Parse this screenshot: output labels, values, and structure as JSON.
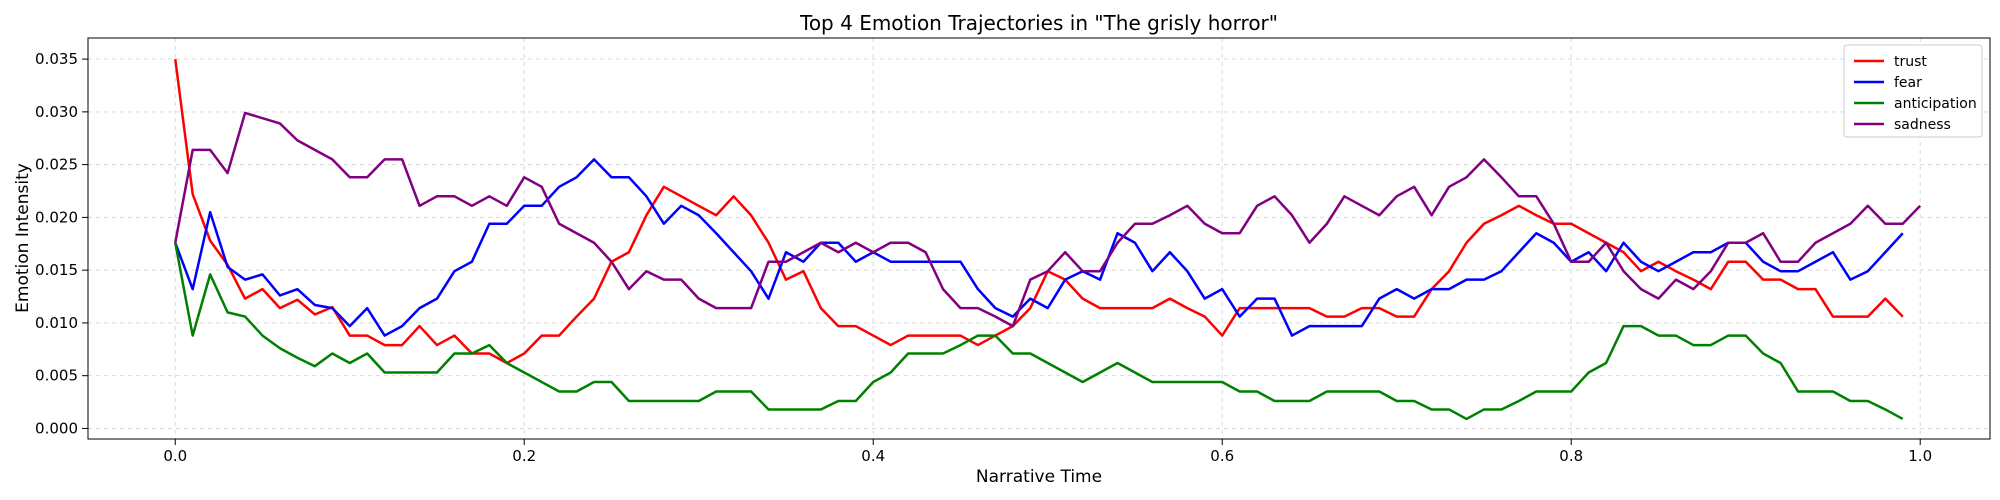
{
  "chart_data": {
    "type": "line",
    "title": "Top 4 Emotion Trajectories in \"The grisly horror\"",
    "xlabel": "Narrative Time",
    "ylabel": "Emotion Intensity",
    "xlim": [
      -0.05,
      1.04
    ],
    "ylim": [
      -0.001,
      0.037
    ],
    "xticks": [
      0.0,
      0.2,
      0.4,
      0.6,
      0.8,
      1.0
    ],
    "xtick_labels": [
      "0.0",
      "0.2",
      "0.4",
      "0.6",
      "0.8",
      "1.0"
    ],
    "yticks": [
      0.0,
      0.005,
      0.01,
      0.015,
      0.02,
      0.025,
      0.03,
      0.035
    ],
    "ytick_labels": [
      "0.000",
      "0.005",
      "0.010",
      "0.015",
      "0.020",
      "0.025",
      "0.030",
      "0.035"
    ],
    "grid": true,
    "legend_position": "top-right",
    "x_start": 0.0,
    "x_step": 0.01,
    "series": [
      {
        "name": "trust",
        "color": "#ff0000",
        "values": [
          0.035,
          0.0222,
          0.0178,
          0.0155,
          0.0123,
          0.0132,
          0.0114,
          0.0122,
          0.0108,
          0.0115,
          0.0088,
          0.0088,
          0.0079,
          0.0079,
          0.0097,
          0.0079,
          0.0088,
          0.0071,
          0.0071,
          0.0062,
          0.0071,
          0.0088,
          0.0088,
          0.0106,
          0.0123,
          0.0158,
          0.0167,
          0.0202,
          0.0229,
          0.022,
          0.0211,
          0.0202,
          0.022,
          0.0202,
          0.0176,
          0.0141,
          0.0149,
          0.0114,
          0.0097,
          0.0097,
          0.0088,
          0.0079,
          0.0088,
          0.0088,
          0.0088,
          0.0088,
          0.0079,
          0.0088,
          0.0097,
          0.0114,
          0.0149,
          0.0141,
          0.0123,
          0.0114,
          0.0114,
          0.0114,
          0.0114,
          0.0123,
          0.0114,
          0.0106,
          0.0088,
          0.0114,
          0.0114,
          0.0114,
          0.0114,
          0.0114,
          0.0106,
          0.0106,
          0.0114,
          0.0114,
          0.0106,
          0.0106,
          0.0132,
          0.0149,
          0.0176,
          0.0194,
          0.0202,
          0.0211,
          0.0202,
          0.0194,
          0.0194,
          0.0185,
          0.0176,
          0.0167,
          0.0149,
          0.0158,
          0.0149,
          0.0141,
          0.0132,
          0.0158,
          0.0158,
          0.0141,
          0.0141,
          0.0132,
          0.0132,
          0.0106,
          0.0106,
          0.0106,
          0.0123,
          0.0106
        ]
      },
      {
        "name": "fear",
        "color": "#0000ff",
        "values": [
          0.0176,
          0.0132,
          0.0205,
          0.0153,
          0.0141,
          0.0146,
          0.0126,
          0.0132,
          0.0117,
          0.0114,
          0.0097,
          0.0114,
          0.0088,
          0.0097,
          0.0114,
          0.0123,
          0.0149,
          0.0158,
          0.0194,
          0.0194,
          0.0211,
          0.0211,
          0.0229,
          0.0238,
          0.0255,
          0.0238,
          0.0238,
          0.022,
          0.0194,
          0.0211,
          0.0202,
          0.0185,
          0.0167,
          0.0149,
          0.0123,
          0.0167,
          0.0158,
          0.0176,
          0.0176,
          0.0158,
          0.0167,
          0.0158,
          0.0158,
          0.0158,
          0.0158,
          0.0158,
          0.0132,
          0.0114,
          0.0106,
          0.0123,
          0.0114,
          0.0141,
          0.0149,
          0.0141,
          0.0185,
          0.0176,
          0.0149,
          0.0167,
          0.0149,
          0.0123,
          0.0132,
          0.0106,
          0.0123,
          0.0123,
          0.0088,
          0.0097,
          0.0097,
          0.0097,
          0.0097,
          0.0123,
          0.0132,
          0.0123,
          0.0132,
          0.0132,
          0.0141,
          0.0141,
          0.0149,
          0.0167,
          0.0185,
          0.0176,
          0.0158,
          0.0167,
          0.0149,
          0.0176,
          0.0158,
          0.0149,
          0.0158,
          0.0167,
          0.0167,
          0.0176,
          0.0176,
          0.0158,
          0.0149,
          0.0149,
          0.0158,
          0.0167,
          0.0141,
          0.0149,
          0.0167,
          0.0185
        ]
      },
      {
        "name": "anticipation",
        "color": "#008000",
        "values": [
          0.0176,
          0.0088,
          0.0146,
          0.011,
          0.0106,
          0.0088,
          0.0076,
          0.0067,
          0.0059,
          0.0071,
          0.0062,
          0.0071,
          0.0053,
          0.0053,
          0.0053,
          0.0053,
          0.0071,
          0.0071,
          0.0079,
          0.0062,
          0.0053,
          0.0044,
          0.0035,
          0.0035,
          0.0044,
          0.0044,
          0.0026,
          0.0026,
          0.0026,
          0.0026,
          0.0026,
          0.0035,
          0.0035,
          0.0035,
          0.0018,
          0.0018,
          0.0018,
          0.0018,
          0.0026,
          0.0026,
          0.0044,
          0.0053,
          0.0071,
          0.0071,
          0.0071,
          0.0079,
          0.0088,
          0.0088,
          0.0071,
          0.0071,
          0.0062,
          0.0053,
          0.0044,
          0.0053,
          0.0062,
          0.0053,
          0.0044,
          0.0044,
          0.0044,
          0.0044,
          0.0044,
          0.0035,
          0.0035,
          0.0026,
          0.0026,
          0.0026,
          0.0035,
          0.0035,
          0.0035,
          0.0035,
          0.0026,
          0.0026,
          0.0018,
          0.0018,
          0.0009,
          0.0018,
          0.0018,
          0.0026,
          0.0035,
          0.0035,
          0.0035,
          0.0053,
          0.0062,
          0.0097,
          0.0097,
          0.0088,
          0.0088,
          0.0079,
          0.0079,
          0.0088,
          0.0088,
          0.0071,
          0.0062,
          0.0035,
          0.0035,
          0.0035,
          0.0026,
          0.0026,
          0.0018,
          0.0009
        ]
      },
      {
        "name": "sadness",
        "color": "#800080",
        "values": [
          0.0176,
          0.0264,
          0.0264,
          0.0242,
          0.0299,
          0.0294,
          0.0289,
          0.0273,
          0.0264,
          0.0255,
          0.0238,
          0.0238,
          0.0255,
          0.0255,
          0.0211,
          0.022,
          0.022,
          0.0211,
          0.022,
          0.0211,
          0.0238,
          0.0229,
          0.0194,
          0.0185,
          0.0176,
          0.0158,
          0.0132,
          0.0149,
          0.0141,
          0.0141,
          0.0123,
          0.0114,
          0.0114,
          0.0114,
          0.0158,
          0.0158,
          0.0167,
          0.0176,
          0.0167,
          0.0176,
          0.0167,
          0.0176,
          0.0176,
          0.0167,
          0.0132,
          0.0114,
          0.0114,
          0.0106,
          0.0097,
          0.0141,
          0.0149,
          0.0167,
          0.0149,
          0.0149,
          0.0176,
          0.0194,
          0.0194,
          0.0202,
          0.0211,
          0.0194,
          0.0185,
          0.0185,
          0.0211,
          0.022,
          0.0202,
          0.0176,
          0.0194,
          0.022,
          0.0211,
          0.0202,
          0.022,
          0.0229,
          0.0202,
          0.0229,
          0.0238,
          0.0255,
          0.0238,
          0.022,
          0.022,
          0.0194,
          0.0158,
          0.0158,
          0.0176,
          0.0149,
          0.0132,
          0.0123,
          0.0141,
          0.0132,
          0.0149,
          0.0176,
          0.0176,
          0.0185,
          0.0158,
          0.0158,
          0.0176,
          0.0185,
          0.0194,
          0.0211,
          0.0194,
          0.0194,
          0.0211
        ]
      }
    ]
  }
}
